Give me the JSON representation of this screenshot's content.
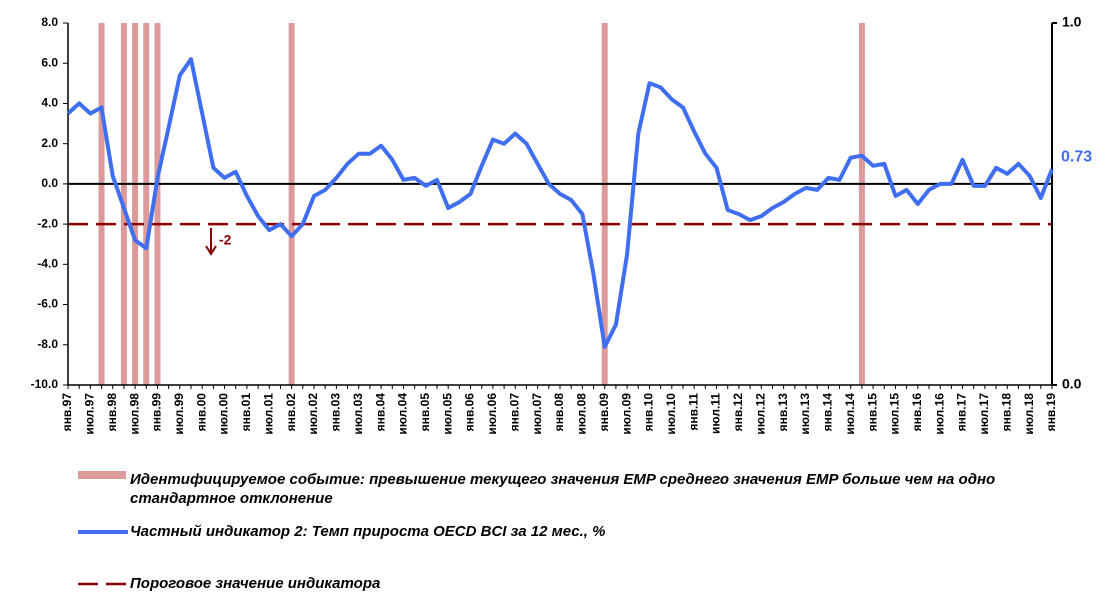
{
  "chart_data": {
    "type": "line",
    "categories": [
      "янв.97",
      null,
      "июл.97",
      null,
      "янв.98",
      null,
      "июл.98",
      null,
      "янв.99",
      null,
      "июл.99",
      null,
      "янв.00",
      null,
      "июл.00",
      null,
      "янв.01",
      null,
      "июл.01",
      null,
      "янв.02",
      null,
      "июл.02",
      null,
      "янв.03",
      null,
      "июл.03",
      null,
      "янв.04",
      null,
      "июл.04",
      null,
      "янв.05",
      null,
      "июл.05",
      null,
      "янв.06",
      null,
      "июл.06",
      null,
      "янв.07",
      null,
      "июл.07",
      null,
      "янв.08",
      null,
      "июл.08",
      null,
      "янв.09",
      null,
      "июл.09",
      null,
      "янв.10",
      null,
      "июл.10",
      null,
      "янв.11",
      null,
      "июл.11",
      null,
      "янв.12",
      null,
      "июл.12",
      null,
      "янв.13",
      null,
      "июл.13",
      null,
      "янв.14",
      null,
      "июл.14",
      null,
      "янв.15",
      null,
      "июл.15",
      null,
      "янв.16",
      null,
      "июл.16",
      null,
      "янв.17",
      null,
      "июл.17",
      null,
      "янв.18",
      null,
      "июл.18",
      null,
      "янв.19"
    ],
    "series": [
      {
        "name": "Идентифицируемое событие: превышение текущего значения EMP среднего значения EMP больше чем на одно стандартное отклонение",
        "type": "bar",
        "axis": "y2",
        "color": "#dc9a9a",
        "values": [
          0,
          0,
          0,
          1,
          0,
          1,
          1,
          1,
          1,
          0,
          0,
          0,
          0,
          0,
          0,
          0,
          0,
          0,
          0,
          0,
          1,
          0,
          0,
          0,
          0,
          0,
          0,
          0,
          0,
          0,
          0,
          0,
          0,
          0,
          0,
          0,
          0,
          0,
          0,
          0,
          0,
          0,
          0,
          0,
          0,
          0,
          0,
          0,
          1,
          0,
          0,
          0,
          0,
          0,
          0,
          0,
          0,
          0,
          0,
          0,
          0,
          0,
          0,
          0,
          0,
          0,
          0,
          0,
          0,
          0,
          0,
          1,
          0,
          0,
          0,
          0,
          0,
          0,
          0,
          0,
          0,
          0,
          0,
          0,
          0,
          0,
          0,
          0,
          0
        ]
      },
      {
        "name": "Частный индикатор 2: Темп прироста OECD BCI за 12 мес., %",
        "type": "line",
        "color": "#3f6ef0",
        "values": [
          3.5,
          4.0,
          3.5,
          3.8,
          0.4,
          -1.2,
          -2.8,
          -3.2,
          0.3,
          2.8,
          5.4,
          6.2,
          3.5,
          0.8,
          0.3,
          0.6,
          -0.6,
          -1.6,
          -2.3,
          -2.0,
          -2.6,
          -2.0,
          -0.6,
          -0.3,
          0.3,
          1.0,
          1.5,
          1.5,
          1.9,
          1.2,
          0.2,
          0.3,
          -0.1,
          0.2,
          -1.2,
          -0.9,
          -0.5,
          0.9,
          2.2,
          2.0,
          2.5,
          2.0,
          1.0,
          0.0,
          -0.5,
          -0.8,
          -1.5,
          -4.5,
          -8.1,
          -7.0,
          -3.5,
          2.5,
          5.0,
          4.8,
          4.2,
          3.8,
          2.6,
          1.5,
          0.8,
          -1.3,
          -1.5,
          -1.8,
          -1.6,
          -1.2,
          -0.9,
          -0.5,
          -0.2,
          -0.3,
          0.3,
          0.2,
          1.3,
          1.4,
          0.9,
          1.0,
          -0.6,
          -0.3,
          -1.0,
          -0.3,
          0.0,
          0.0,
          1.2,
          -0.1,
          -0.1,
          0.8,
          0.5,
          1.0,
          0.4,
          -0.7,
          0.73
        ]
      }
    ],
    "threshold": {
      "name": "Пороговое значение индикатора",
      "color": "#8b0000",
      "value": -2
    },
    "ylim": [
      -10,
      8
    ],
    "yticks": [
      {
        "value": -10,
        "label": "-10.0"
      },
      {
        "value": -8,
        "label": "-8.0"
      },
      {
        "value": -6,
        "label": "-6.0"
      },
      {
        "value": -4,
        "label": "-4.0"
      },
      {
        "value": -2,
        "label": "-2.0"
      },
      {
        "value": 0,
        "label": "0.0"
      },
      {
        "value": 2,
        "label": "2.0"
      },
      {
        "value": 4,
        "label": "4.0"
      },
      {
        "value": 6,
        "label": "6.0"
      },
      {
        "value": 8,
        "label": "8.0"
      }
    ],
    "y2lim": [
      0,
      1
    ],
    "y2ticks": [
      {
        "value": 0,
        "label": "0.0"
      },
      {
        "value": 1,
        "label": "1.0"
      }
    ],
    "grid": false
  }
}
